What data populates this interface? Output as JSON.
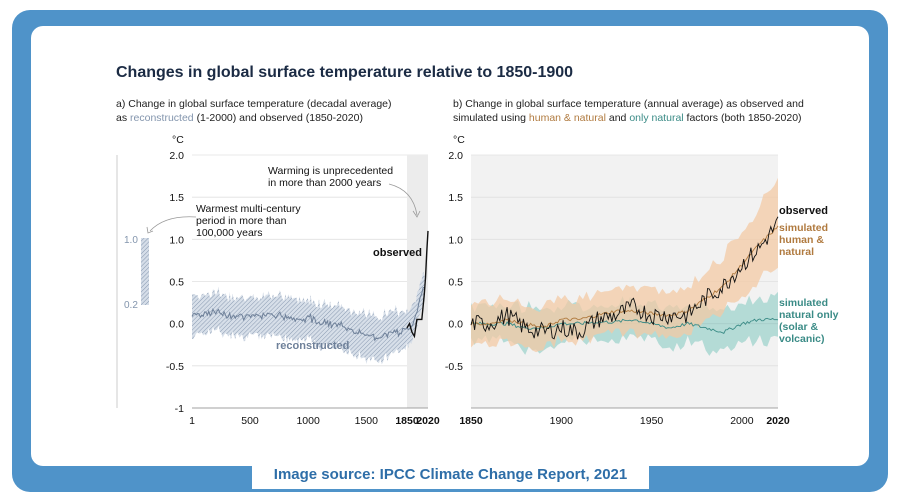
{
  "caption": "Image source: IPCC Climate Change Report, 2021",
  "title": "Changes in global surface temperature relative to 1850-1900",
  "panel_a": {
    "subtitle_line1": "a) Change in global surface temperature (decadal average)",
    "subtitle_as": "as",
    "subtitle_reconstructed": "reconstructed",
    "subtitle_range": "(1-2000) and",
    "subtitle_observed": "observed",
    "subtitle_range2": "(1850-2020)",
    "unit": "°C",
    "annotation_warming_1": "Warming is unprecedented",
    "annotation_warming_2": "in more than 2000 years",
    "annotation_warmest_1": "Warmest multi-century",
    "annotation_warmest_2": "period in more than",
    "annotation_warmest_3": "100,000 years",
    "label_observed": "observed",
    "label_reconstructed": "reconstructed",
    "bar_top_label": "1.0",
    "bar_bottom_label": "0.2"
  },
  "panel_b": {
    "subtitle_line1": "b) Change in global surface temperature (annual average) as observed and",
    "subtitle_pre": "simulated using",
    "subtitle_hn": "human & natural",
    "subtitle_and": "and",
    "subtitle_nat": "only natural",
    "subtitle_post": "factors (both 1850-2020)",
    "unit": "°C",
    "label_observed": "observed",
    "label_hn_1": "simulated",
    "label_hn_2": "human &",
    "label_hn_3": "natural",
    "label_nat_1": "simulated",
    "label_nat_2": "natural only",
    "label_nat_3": "(solar &",
    "label_nat_4": "volcanic)"
  },
  "colors": {
    "reconstructed": "#8395ad",
    "observed": "#111111",
    "human_natural": "#b07a3f",
    "human_natural_band": "#f3c9a4",
    "natural_only": "#3a8b86",
    "natural_band": "#9fd3cc",
    "frame": "#4f93c9"
  },
  "chart_data": [
    {
      "type": "line",
      "title": "a) Change in global surface temperature (decadal average)",
      "ylabel": "°C",
      "ylim": [
        -1,
        2
      ],
      "yticks": [
        "2.0",
        "1.5",
        "1.0",
        "0.5",
        "0.0",
        "-0.5",
        "-1"
      ],
      "xticks": [
        "1",
        "500",
        "1000",
        "1500",
        "1850",
        "2020"
      ],
      "grid": true,
      "series": [
        {
          "name": "reconstructed",
          "x": [
            1,
            100,
            200,
            300,
            400,
            500,
            600,
            700,
            800,
            900,
            1000,
            1100,
            1200,
            1300,
            1400,
            1500,
            1600,
            1700,
            1800,
            1900,
            2000
          ],
          "values": [
            0.1,
            0.12,
            0.15,
            0.1,
            0.1,
            0.08,
            0.1,
            0.12,
            0.07,
            0.05,
            0.08,
            0.02,
            0.0,
            -0.02,
            -0.08,
            -0.15,
            -0.15,
            -0.12,
            -0.1,
            0.0,
            0.5
          ],
          "lower": [
            -0.15,
            -0.1,
            -0.07,
            -0.12,
            -0.12,
            -0.15,
            -0.14,
            -0.12,
            -0.18,
            -0.2,
            -0.16,
            -0.25,
            -0.25,
            -0.3,
            -0.35,
            -0.45,
            -0.42,
            -0.38,
            -0.32,
            -0.18,
            0.35
          ],
          "upper": [
            0.35,
            0.35,
            0.38,
            0.33,
            0.32,
            0.3,
            0.32,
            0.35,
            0.3,
            0.28,
            0.3,
            0.25,
            0.22,
            0.2,
            0.15,
            0.1,
            0.1,
            0.12,
            0.15,
            0.2,
            0.65
          ]
        },
        {
          "name": "observed",
          "x": [
            1850,
            1870,
            1890,
            1910,
            1930,
            1950,
            1970,
            1990,
            2000,
            2010,
            2020
          ],
          "values": [
            -0.05,
            0.0,
            -0.1,
            -0.15,
            0.05,
            0.05,
            0.05,
            0.35,
            0.55,
            0.85,
            1.1
          ]
        }
      ]
    },
    {
      "type": "line",
      "title": "b) Change in global surface temperature (annual average)",
      "ylabel": "°C",
      "ylim": [
        -1,
        2
      ],
      "yticks": [
        "2.0",
        "1.5",
        "1.0",
        "0.5",
        "0.0",
        "-0.5"
      ],
      "xticks": [
        "1850",
        "1900",
        "1950",
        "2000",
        "2020"
      ],
      "grid": true,
      "series": [
        {
          "name": "observed",
          "x": [
            1850,
            1860,
            1870,
            1880,
            1890,
            1900,
            1910,
            1920,
            1930,
            1940,
            1950,
            1960,
            1970,
            1980,
            1990,
            2000,
            2010,
            2020
          ],
          "values": [
            0.0,
            0.0,
            0.1,
            -0.05,
            -0.1,
            -0.05,
            -0.1,
            0.05,
            0.1,
            0.2,
            0.1,
            0.1,
            0.1,
            0.3,
            0.45,
            0.7,
            0.9,
            1.2
          ]
        },
        {
          "name": "simulated human & natural",
          "x": [
            1850,
            1860,
            1870,
            1880,
            1890,
            1900,
            1910,
            1920,
            1930,
            1940,
            1950,
            1960,
            1970,
            1980,
            1990,
            2000,
            2010,
            2020
          ],
          "values": [
            0.0,
            0.0,
            0.05,
            0.0,
            -0.05,
            0.05,
            0.05,
            0.1,
            0.15,
            0.15,
            0.12,
            0.1,
            0.15,
            0.3,
            0.45,
            0.7,
            0.95,
            1.15
          ],
          "lower": [
            -0.25,
            -0.25,
            -0.2,
            -0.25,
            -0.3,
            -0.2,
            -0.2,
            -0.15,
            -0.1,
            -0.1,
            -0.15,
            -0.15,
            -0.1,
            0.05,
            0.15,
            0.35,
            0.55,
            0.7
          ],
          "upper": [
            0.25,
            0.25,
            0.3,
            0.25,
            0.2,
            0.3,
            0.3,
            0.35,
            0.4,
            0.45,
            0.4,
            0.4,
            0.45,
            0.6,
            0.8,
            1.1,
            1.4,
            1.75
          ]
        },
        {
          "name": "simulated natural only (solar & volcanic)",
          "x": [
            1850,
            1860,
            1870,
            1880,
            1890,
            1900,
            1910,
            1920,
            1930,
            1940,
            1950,
            1960,
            1970,
            1980,
            1990,
            2000,
            2010,
            2020
          ],
          "values": [
            0.0,
            0.0,
            0.0,
            -0.05,
            -0.05,
            0.0,
            0.0,
            0.02,
            0.02,
            0.05,
            0.0,
            -0.05,
            0.0,
            -0.05,
            -0.1,
            0.0,
            0.05,
            0.05
          ],
          "lower": [
            -0.2,
            -0.2,
            -0.2,
            -0.3,
            -0.3,
            -0.2,
            -0.2,
            -0.2,
            -0.2,
            -0.15,
            -0.2,
            -0.3,
            -0.2,
            -0.3,
            -0.35,
            -0.2,
            -0.2,
            -0.2
          ],
          "upper": [
            0.2,
            0.2,
            0.2,
            0.2,
            0.2,
            0.2,
            0.2,
            0.2,
            0.25,
            0.25,
            0.22,
            0.2,
            0.2,
            0.2,
            0.15,
            0.25,
            0.3,
            0.3
          ]
        }
      ]
    }
  ]
}
